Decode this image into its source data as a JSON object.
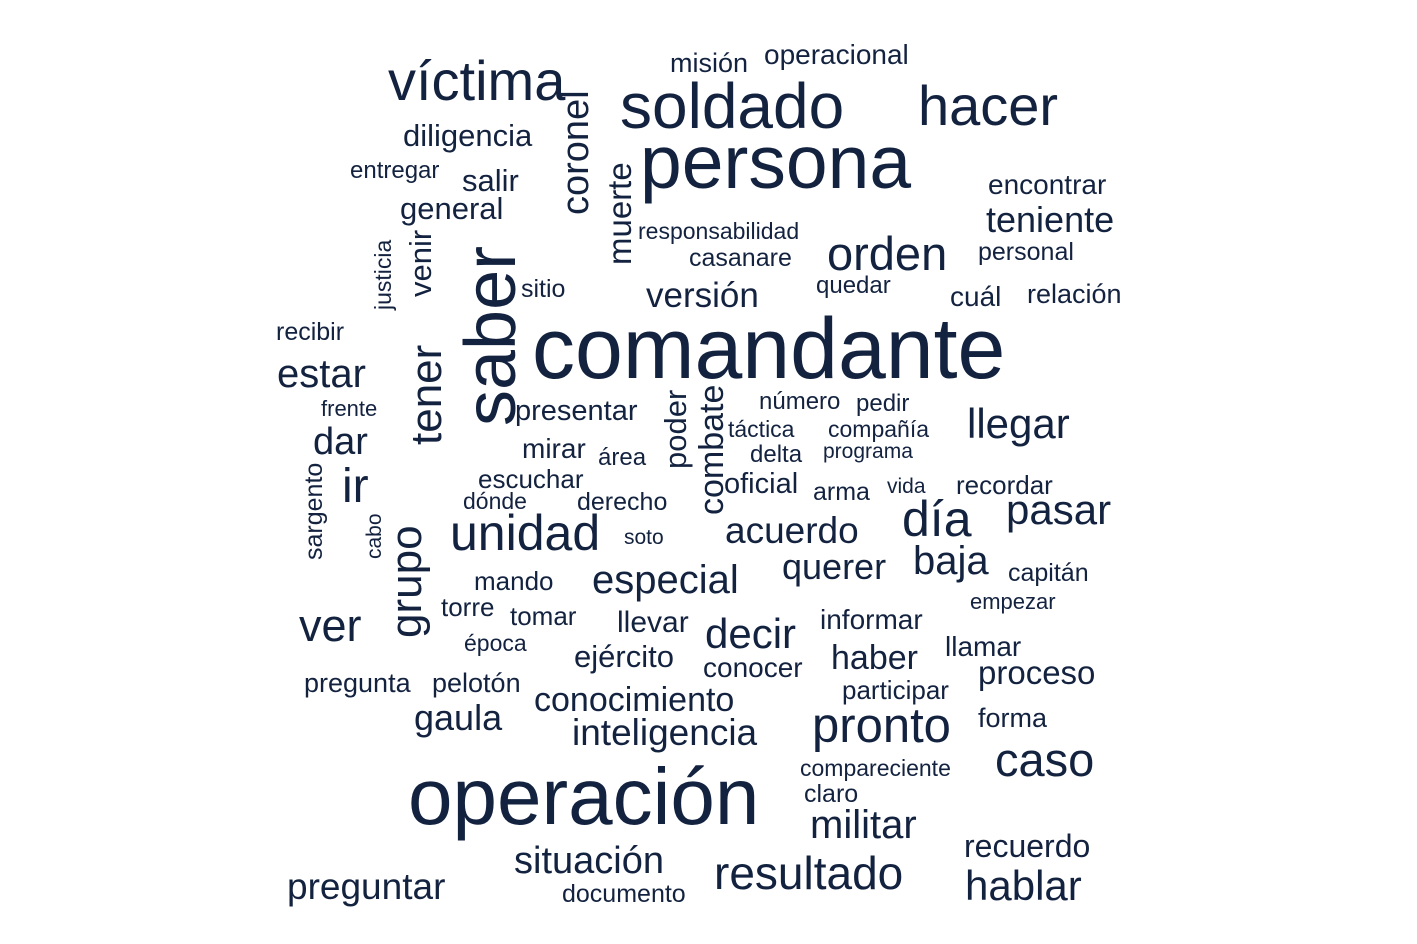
{
  "theme": {
    "word_color": "#13223f",
    "background": "#ffffff"
  },
  "words": [
    {
      "text": "comandante",
      "weight": 100,
      "vertical": false
    },
    {
      "text": "persona",
      "weight": 88,
      "vertical": false
    },
    {
      "text": "operación",
      "weight": 92,
      "vertical": false
    },
    {
      "text": "saber",
      "weight": 88,
      "vertical": true
    },
    {
      "text": "soldado",
      "weight": 68,
      "vertical": false
    },
    {
      "text": "hacer",
      "weight": 60,
      "vertical": false
    },
    {
      "text": "víctima",
      "weight": 60,
      "vertical": false
    },
    {
      "text": "grupo",
      "weight": 52,
      "vertical": true
    },
    {
      "text": "tener",
      "weight": 52,
      "vertical": true
    },
    {
      "text": "ir",
      "weight": 52,
      "vertical": false
    },
    {
      "text": "unidad",
      "weight": 52,
      "vertical": false
    },
    {
      "text": "día",
      "weight": 52,
      "vertical": false
    },
    {
      "text": "orden",
      "weight": 50,
      "vertical": false
    },
    {
      "text": "caso",
      "weight": 50,
      "vertical": false
    },
    {
      "text": "pronto",
      "weight": 50,
      "vertical": false
    },
    {
      "text": "resultado",
      "weight": 47,
      "vertical": false
    },
    {
      "text": "ver",
      "weight": 46,
      "vertical": false
    },
    {
      "text": "decir",
      "weight": 44,
      "vertical": false
    },
    {
      "text": "especial",
      "weight": 42,
      "vertical": false
    },
    {
      "text": "hablar",
      "weight": 42,
      "vertical": false
    },
    {
      "text": "llegar",
      "weight": 42,
      "vertical": false
    },
    {
      "text": "pasar",
      "weight": 42,
      "vertical": false
    },
    {
      "text": "baja",
      "weight": 42,
      "vertical": false
    },
    {
      "text": "militar",
      "weight": 40,
      "vertical": false
    },
    {
      "text": "situación",
      "weight": 40,
      "vertical": false
    },
    {
      "text": "estar",
      "weight": 40,
      "vertical": false
    },
    {
      "text": "preguntar",
      "weight": 38,
      "vertical": false
    },
    {
      "text": "coronel",
      "weight": 40,
      "vertical": true
    },
    {
      "text": "dar",
      "weight": 38,
      "vertical": false
    },
    {
      "text": "teniente",
      "weight": 38,
      "vertical": false
    },
    {
      "text": "acuerdo",
      "weight": 38,
      "vertical": false
    },
    {
      "text": "querer",
      "weight": 38,
      "vertical": false
    },
    {
      "text": "inteligencia",
      "weight": 38,
      "vertical": false
    },
    {
      "text": "gaula",
      "weight": 36,
      "vertical": false
    },
    {
      "text": "versión",
      "weight": 36,
      "vertical": false
    },
    {
      "text": "combate",
      "weight": 35,
      "vertical": true
    },
    {
      "text": "conocimiento",
      "weight": 34,
      "vertical": false
    },
    {
      "text": "proceso",
      "weight": 34,
      "vertical": false
    },
    {
      "text": "haber",
      "weight": 34,
      "vertical": false
    },
    {
      "text": "recuerdo",
      "weight": 32,
      "vertical": false
    },
    {
      "text": "muerte",
      "weight": 33,
      "vertical": true
    },
    {
      "text": "ejército",
      "weight": 32,
      "vertical": false
    },
    {
      "text": "diligencia",
      "weight": 31,
      "vertical": false
    },
    {
      "text": "general",
      "weight": 31,
      "vertical": false
    },
    {
      "text": "venir",
      "weight": 31,
      "vertical": true
    },
    {
      "text": "poder",
      "weight": 31,
      "vertical": true
    },
    {
      "text": "salir",
      "weight": 30,
      "vertical": false
    },
    {
      "text": "llevar",
      "weight": 30,
      "vertical": false
    },
    {
      "text": "informar",
      "weight": 29,
      "vertical": false
    },
    {
      "text": "oficial",
      "weight": 29,
      "vertical": false
    },
    {
      "text": "presentar",
      "weight": 29,
      "vertical": false
    },
    {
      "text": "encontrar",
      "weight": 28,
      "vertical": false
    },
    {
      "text": "cuál",
      "weight": 28,
      "vertical": false
    },
    {
      "text": "operacional",
      "weight": 28,
      "vertical": false
    },
    {
      "text": "conocer",
      "weight": 28,
      "vertical": false
    },
    {
      "text": "llamar",
      "weight": 28,
      "vertical": false
    },
    {
      "text": "mirar",
      "weight": 27,
      "vertical": false
    },
    {
      "text": "relación",
      "weight": 27,
      "vertical": false
    },
    {
      "text": "misión",
      "weight": 27,
      "vertical": false
    },
    {
      "text": "forma",
      "weight": 27,
      "vertical": false
    },
    {
      "text": "pregunta",
      "weight": 27,
      "vertical": false
    },
    {
      "text": "pelotón",
      "weight": 27,
      "vertical": false
    },
    {
      "text": "participar",
      "weight": 26,
      "vertical": false
    },
    {
      "text": "recordar",
      "weight": 26,
      "vertical": false
    },
    {
      "text": "tomar",
      "weight": 26,
      "vertical": false
    },
    {
      "text": "mando",
      "weight": 26,
      "vertical": false
    },
    {
      "text": "escuchar",
      "weight": 26,
      "vertical": false
    },
    {
      "text": "torre",
      "weight": 26,
      "vertical": false
    },
    {
      "text": "sargento",
      "weight": 26,
      "vertical": true
    },
    {
      "text": "personal",
      "weight": 26,
      "vertical": false
    },
    {
      "text": "documento",
      "weight": 25,
      "vertical": false
    },
    {
      "text": "derecho",
      "weight": 25,
      "vertical": false
    },
    {
      "text": "capitán",
      "weight": 25,
      "vertical": false
    },
    {
      "text": "recibir",
      "weight": 25,
      "vertical": false
    },
    {
      "text": "casanare",
      "weight": 25,
      "vertical": false
    },
    {
      "text": "arma",
      "weight": 25,
      "vertical": false
    },
    {
      "text": "claro",
      "weight": 25,
      "vertical": false
    },
    {
      "text": "sitio",
      "weight": 25,
      "vertical": false
    },
    {
      "text": "entregar",
      "weight": 24,
      "vertical": false
    },
    {
      "text": "responsabilidad",
      "weight": 24,
      "vertical": false
    },
    {
      "text": "quedar",
      "weight": 24,
      "vertical": false
    },
    {
      "text": "número",
      "weight": 24,
      "vertical": false
    },
    {
      "text": "pedir",
      "weight": 24,
      "vertical": false
    },
    {
      "text": "área",
      "weight": 24,
      "vertical": false
    },
    {
      "text": "delta",
      "weight": 24,
      "vertical": false
    },
    {
      "text": "táctica",
      "weight": 23,
      "vertical": false
    },
    {
      "text": "época",
      "weight": 23,
      "vertical": false
    },
    {
      "text": "dónde",
      "weight": 23,
      "vertical": false
    },
    {
      "text": "compañía",
      "weight": 23,
      "vertical": false
    },
    {
      "text": "compareciente",
      "weight": 23,
      "vertical": false
    },
    {
      "text": "empezar",
      "weight": 23,
      "vertical": false
    },
    {
      "text": "justicia",
      "weight": 23,
      "vertical": true
    },
    {
      "text": "frente",
      "weight": 22,
      "vertical": false
    },
    {
      "text": "programa",
      "weight": 22,
      "vertical": false
    },
    {
      "text": "vida",
      "weight": 21,
      "vertical": false
    },
    {
      "text": "soto",
      "weight": 21,
      "vertical": false
    },
    {
      "text": "cabo",
      "weight": 21,
      "vertical": true
    }
  ]
}
